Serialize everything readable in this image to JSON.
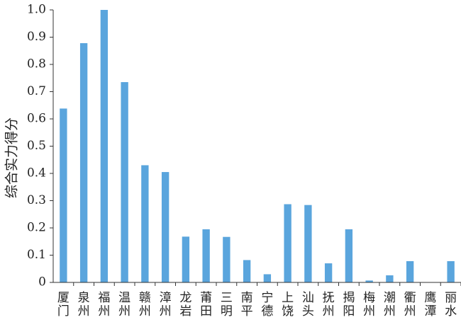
{
  "chart_data": {
    "type": "bar",
    "ylabel": "综合实力得分",
    "ylim": [
      0,
      1.0
    ],
    "yticks": [
      "0",
      "0.1",
      "0.2",
      "0.3",
      "0.4",
      "0.5",
      "0.6",
      "0.7",
      "0.8",
      "0.9",
      "1.0"
    ],
    "grid": false,
    "bar_color": "#5aa5dd",
    "categories": [
      "厦门",
      "泉州",
      "福州",
      "温州",
      "赣州",
      "漳州",
      "龙岩",
      "莆田",
      "三明",
      "南平",
      "宁德",
      "上饶",
      "汕头",
      "抚州",
      "揭阳",
      "梅州",
      "潮州",
      "衢州",
      "鹰潭",
      "丽水"
    ],
    "values": [
      0.638,
      0.878,
      1.0,
      0.735,
      0.43,
      0.405,
      0.168,
      0.195,
      0.167,
      0.082,
      0.03,
      0.287,
      0.284,
      0.07,
      0.195,
      0.007,
      0.026,
      0.078,
      0.0,
      0.078
    ]
  }
}
